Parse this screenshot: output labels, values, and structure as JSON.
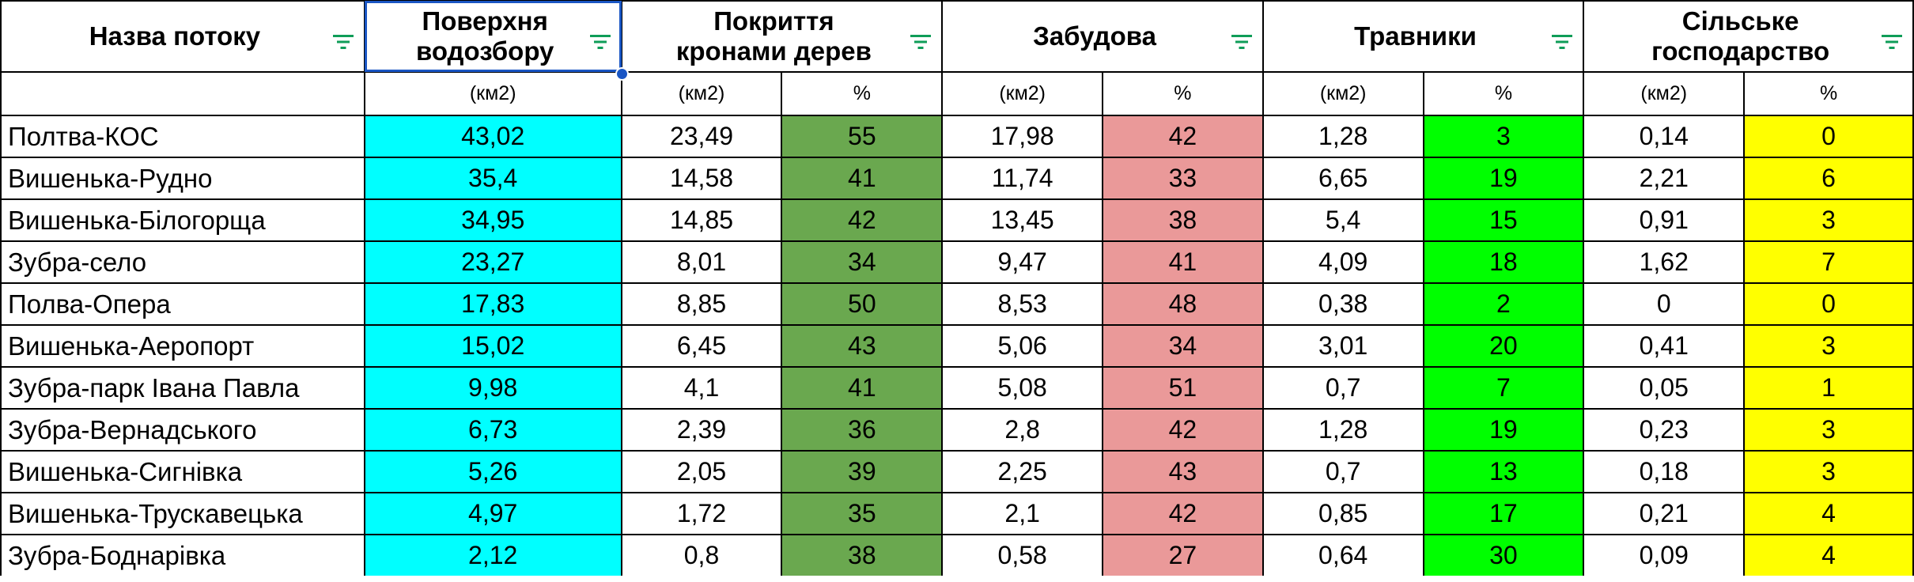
{
  "headers": {
    "name": "Назва потоку",
    "area": [
      "Поверхня",
      "водозбору"
    ],
    "tree": [
      "Покриття",
      "кронами дерев"
    ],
    "build": "Забудова",
    "grass": "Травники",
    "agri": [
      "Сільське",
      "господарство"
    ]
  },
  "units": {
    "km2": "(км2)",
    "pct": "%"
  },
  "colors": {
    "area": "#00FFFF",
    "tree_pct": "#6AA84F",
    "build_pct": "#EA9999",
    "grass_pct": "#00FF00",
    "agri_pct": "#FFFF00",
    "filter_icon": "#0F9D58",
    "selection": "#1A56C4"
  },
  "rows": [
    {
      "name": "Полтва-КОС",
      "area": "43,02",
      "tree_km2": "23,49",
      "tree_pct": "55",
      "build_km2": "17,98",
      "build_pct": "42",
      "grass_km2": "1,28",
      "grass_pct": "3",
      "agri_km2": "0,14",
      "agri_pct": "0"
    },
    {
      "name": "Вишенька-Рудно",
      "area": "35,4",
      "tree_km2": "14,58",
      "tree_pct": "41",
      "build_km2": "11,74",
      "build_pct": "33",
      "grass_km2": "6,65",
      "grass_pct": "19",
      "agri_km2": "2,21",
      "agri_pct": "6"
    },
    {
      "name": "Вишенька-Білогорща",
      "area": "34,95",
      "tree_km2": "14,85",
      "tree_pct": "42",
      "build_km2": "13,45",
      "build_pct": "38",
      "grass_km2": "5,4",
      "grass_pct": "15",
      "agri_km2": "0,91",
      "agri_pct": "3"
    },
    {
      "name": "Зубра-село",
      "area": "23,27",
      "tree_km2": "8,01",
      "tree_pct": "34",
      "build_km2": "9,47",
      "build_pct": "41",
      "grass_km2": "4,09",
      "grass_pct": "18",
      "agri_km2": "1,62",
      "agri_pct": "7"
    },
    {
      "name": "Полва-Опера",
      "area": "17,83",
      "tree_km2": "8,85",
      "tree_pct": "50",
      "build_km2": "8,53",
      "build_pct": "48",
      "grass_km2": "0,38",
      "grass_pct": "2",
      "agri_km2": "0",
      "agri_pct": "0"
    },
    {
      "name": "Вишенька-Аеропорт",
      "area": "15,02",
      "tree_km2": "6,45",
      "tree_pct": "43",
      "build_km2": "5,06",
      "build_pct": "34",
      "grass_km2": "3,01",
      "grass_pct": "20",
      "agri_km2": "0,41",
      "agri_pct": "3"
    },
    {
      "name": "Зубра-парк Івана Павла",
      "area": "9,98",
      "tree_km2": "4,1",
      "tree_pct": "41",
      "build_km2": "5,08",
      "build_pct": "51",
      "grass_km2": "0,7",
      "grass_pct": "7",
      "agri_km2": "0,05",
      "agri_pct": "1"
    },
    {
      "name": "Зубра-Вернадського",
      "area": "6,73",
      "tree_km2": "2,39",
      "tree_pct": "36",
      "build_km2": "2,8",
      "build_pct": "42",
      "grass_km2": "1,28",
      "grass_pct": "19",
      "agri_km2": "0,23",
      "agri_pct": "3"
    },
    {
      "name": "Вишенька-Сигнівка",
      "area": "5,26",
      "tree_km2": "2,05",
      "tree_pct": "39",
      "build_km2": "2,25",
      "build_pct": "43",
      "grass_km2": "0,7",
      "grass_pct": "13",
      "agri_km2": "0,18",
      "agri_pct": "3"
    },
    {
      "name": "Вишенька-Трускавецька",
      "area": "4,97",
      "tree_km2": "1,72",
      "tree_pct": "35",
      "build_km2": "2,1",
      "build_pct": "42",
      "grass_km2": "0,85",
      "grass_pct": "17",
      "agri_km2": "0,21",
      "agri_pct": "4"
    },
    {
      "name": "Зубра-Боднарівка",
      "area": "2,12",
      "tree_km2": "0,8",
      "tree_pct": "38",
      "build_km2": "0,58",
      "build_pct": "27",
      "grass_km2": "0,64",
      "grass_pct": "30",
      "agri_km2": "0,09",
      "agri_pct": "4"
    }
  ]
}
